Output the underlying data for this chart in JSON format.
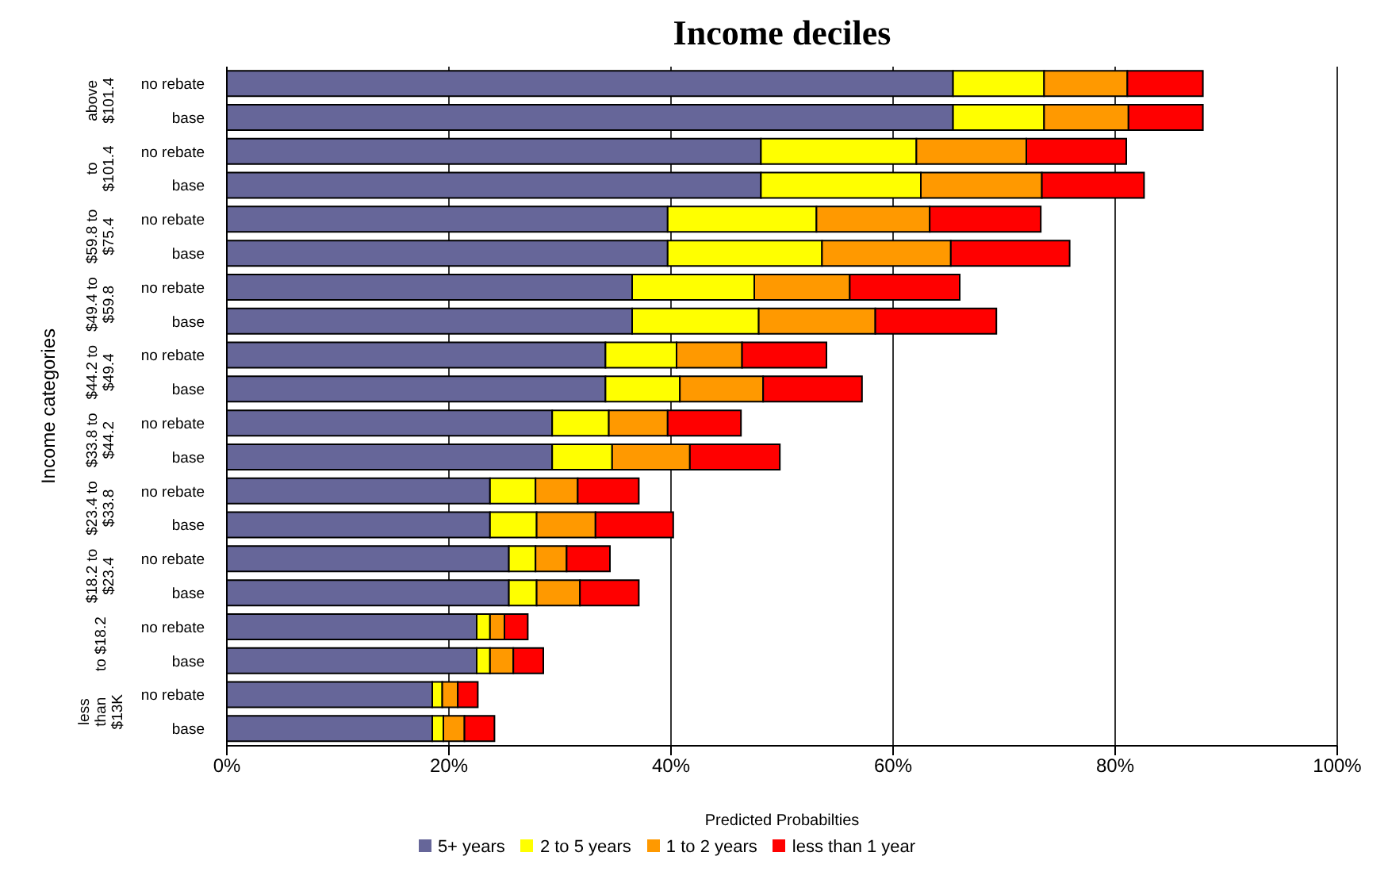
{
  "chart_data": {
    "type": "bar",
    "orientation": "horizontal",
    "stacked": true,
    "title": "Income deciles",
    "xlabel": "Predicted Probabilties",
    "ylabel": "Income categories",
    "categories": [
      "no rebate",
      "base",
      "no rebate",
      "base",
      "no rebate",
      "base",
      "no rebate",
      "base",
      "no rebate",
      "base",
      "no rebate",
      "base",
      "no rebate",
      "base",
      "no rebate",
      "base",
      "no rebate",
      "base",
      "no rebate",
      "base"
    ],
    "annotations": [
      "above $101.4",
      "to $101.4",
      "$59.8 to $75.4",
      "$49.4 to $59.8",
      "$44.2 to $49.4",
      "$33.8 to $44.2",
      "$23.4 to $33.8",
      "$18.2 to $23.4",
      "to $18.2",
      "less than $13K"
    ],
    "series": [
      {
        "name": "5+ years",
        "color": "#666699",
        "values": [
          65.4,
          65.4,
          48.1,
          48.1,
          39.7,
          39.7,
          36.5,
          36.5,
          34.1,
          34.1,
          29.3,
          29.3,
          23.7,
          23.7,
          25.4,
          25.4,
          22.5,
          22.5,
          18.5,
          18.5
        ]
      },
      {
        "name": "2 to 5 years",
        "color": "#ffff00",
        "values": [
          8.2,
          8.2,
          14.0,
          14.4,
          13.4,
          13.9,
          11.0,
          11.4,
          6.4,
          6.7,
          5.1,
          5.4,
          4.1,
          4.2,
          2.4,
          2.5,
          1.2,
          1.2,
          0.9,
          1.0
        ]
      },
      {
        "name": "1 to 2 years",
        "color": "#ff9900",
        "values": [
          7.5,
          7.6,
          9.9,
          10.9,
          10.2,
          11.6,
          8.6,
          10.5,
          5.9,
          7.5,
          5.3,
          7.0,
          3.8,
          5.3,
          2.8,
          3.9,
          1.3,
          2.1,
          1.4,
          1.9
        ]
      },
      {
        "name": "less than 1 year",
        "color": "#ff0000",
        "values": [
          6.8,
          6.7,
          9.0,
          9.2,
          10.0,
          10.7,
          9.9,
          10.9,
          7.6,
          8.9,
          6.6,
          8.1,
          5.5,
          7.0,
          3.9,
          5.3,
          2.1,
          2.7,
          1.8,
          2.7
        ]
      }
    ],
    "xlim": [
      0,
      100
    ],
    "xticks": [
      {
        "value": 0,
        "label": "0%"
      },
      {
        "value": 20,
        "label": "20%"
      },
      {
        "value": 40,
        "label": "40%"
      },
      {
        "value": 60,
        "label": "60%"
      },
      {
        "value": 80,
        "label": "80%"
      },
      {
        "value": 100,
        "label": "100%"
      }
    ],
    "grid": "x",
    "legend": "bottom"
  }
}
